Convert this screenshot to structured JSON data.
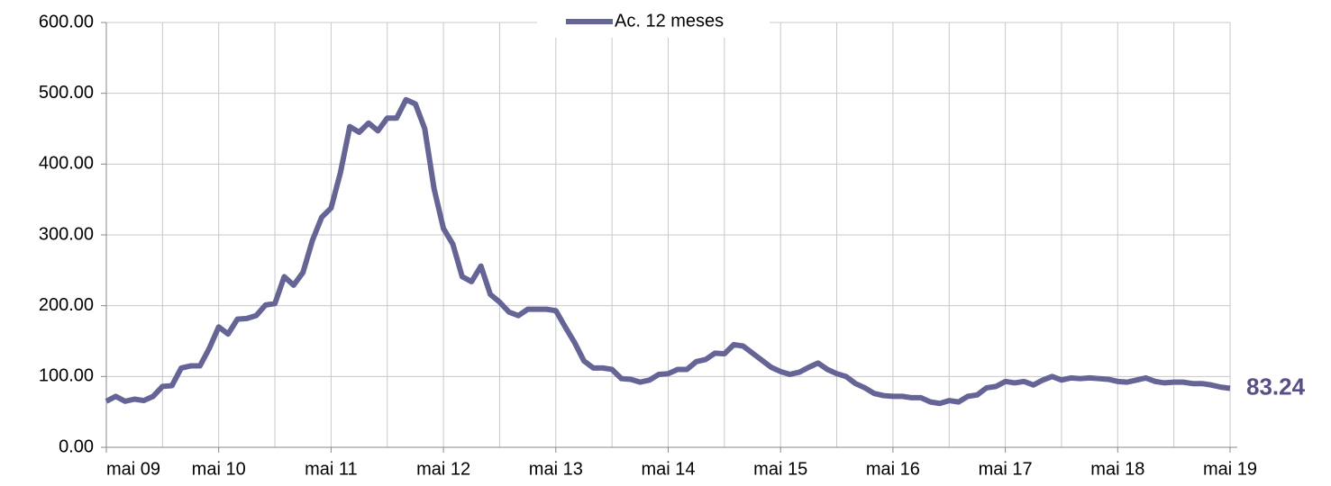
{
  "chart_data": {
    "type": "line",
    "categories": [
      "mai 09",
      null,
      null,
      null,
      null,
      null,
      null,
      null,
      null,
      null,
      null,
      null,
      "mai 10",
      null,
      null,
      null,
      null,
      null,
      null,
      null,
      null,
      null,
      null,
      null,
      "mai 11",
      null,
      null,
      null,
      null,
      null,
      null,
      null,
      null,
      null,
      null,
      null,
      "mai 12",
      null,
      null,
      null,
      null,
      null,
      null,
      null,
      null,
      null,
      null,
      null,
      "mai 13",
      null,
      null,
      null,
      null,
      null,
      null,
      null,
      null,
      null,
      null,
      null,
      "mai 14",
      null,
      null,
      null,
      null,
      null,
      null,
      null,
      null,
      null,
      null,
      null,
      "mai 15",
      null,
      null,
      null,
      null,
      null,
      null,
      null,
      null,
      null,
      null,
      null,
      "mai 16",
      null,
      null,
      null,
      null,
      null,
      null,
      null,
      null,
      null,
      null,
      null,
      "mai 17",
      null,
      null,
      null,
      null,
      null,
      null,
      null,
      null,
      null,
      null,
      null,
      "mai 18",
      null,
      null,
      null,
      null,
      null,
      null,
      null,
      null,
      null,
      null,
      null,
      "mai 19"
    ],
    "series": [
      {
        "name": "Ac. 12 meses",
        "color": "#646496",
        "values": [
          65,
          72,
          65,
          68,
          66,
          72,
          86,
          87,
          112,
          115,
          115,
          140,
          170,
          160,
          181,
          182,
          186,
          201,
          203,
          241,
          229,
          247,
          292,
          325,
          338,
          388,
          453,
          445,
          458,
          447,
          465,
          465,
          491,
          485,
          450,
          365,
          309,
          287,
          241,
          234,
          256,
          216,
          205,
          191,
          186,
          195,
          195,
          195,
          193,
          170,
          148,
          122,
          112,
          112,
          110,
          97,
          96,
          92,
          95,
          103,
          104,
          110,
          110,
          121,
          124,
          133,
          132,
          145,
          143,
          133,
          123,
          113,
          107,
          103,
          106,
          113,
          119,
          110,
          104,
          100,
          90,
          84,
          76,
          73,
          72,
          72,
          70,
          70,
          64,
          62,
          66,
          64,
          72,
          74,
          84,
          86,
          93,
          91,
          93,
          88,
          95,
          100,
          95,
          98,
          97,
          98,
          97,
          96,
          93,
          92,
          95,
          98,
          93,
          91,
          92,
          92,
          90,
          90,
          88,
          85,
          83.24
        ]
      }
    ],
    "ylim": [
      0,
      600
    ],
    "yticks": [
      {
        "value": 0,
        "label": "0.00"
      },
      {
        "value": 100,
        "label": "100.00"
      },
      {
        "value": 200,
        "label": "200.00"
      },
      {
        "value": 300,
        "label": "300.00"
      },
      {
        "value": 400,
        "label": "400.00"
      },
      {
        "value": 500,
        "label": "500.00"
      },
      {
        "value": 600,
        "label": "600.00"
      }
    ],
    "grid": true,
    "legend": "top"
  }
}
